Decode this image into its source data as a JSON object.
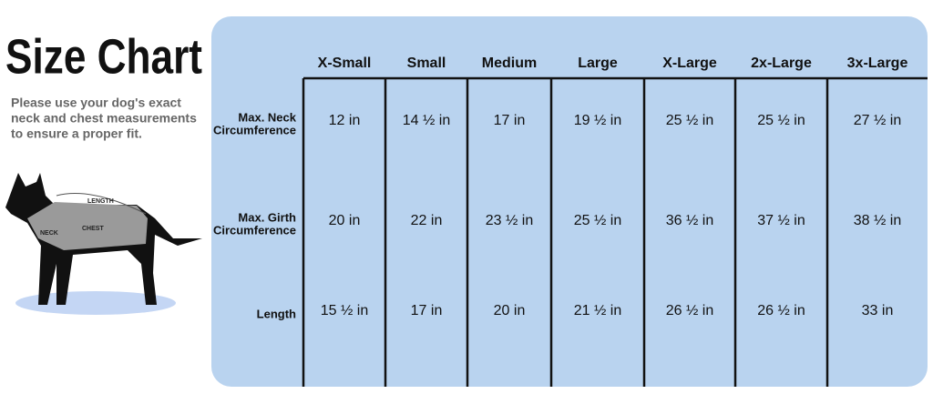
{
  "header": {
    "title": "Size Chart",
    "subtitle": [
      "Please use your dog's exact",
      "neck and chest measurements",
      "to ensure a proper fit."
    ]
  },
  "illustration": {
    "labels": [
      "LENGTH",
      "NECK",
      "CHEST"
    ]
  },
  "table": {
    "columns": [
      "X-Small",
      "Small",
      "Medium",
      "Large",
      "X-Large",
      "2x-Large",
      "3x-Large"
    ],
    "rows": [
      {
        "label": [
          "Max. Neck",
          "Circumference"
        ],
        "cells": [
          "12 in",
          "14 ½ in",
          "17 in",
          "19 ½ in",
          "25 ½ in",
          "25 ½ in",
          "27 ½ in"
        ]
      },
      {
        "label": [
          "Max. Girth",
          "Circumference"
        ],
        "cells": [
          "20 in",
          "22 in",
          "23 ½ in",
          "25 ½ in",
          "36 ½ in",
          "37 ½ in",
          "38 ½ in"
        ]
      },
      {
        "label": [
          "Length"
        ],
        "cells": [
          "15 ½ in",
          "17 in",
          "20 in",
          "21 ½ in",
          "26 ½ in",
          "26 ½ in",
          "33 in"
        ]
      }
    ]
  }
}
